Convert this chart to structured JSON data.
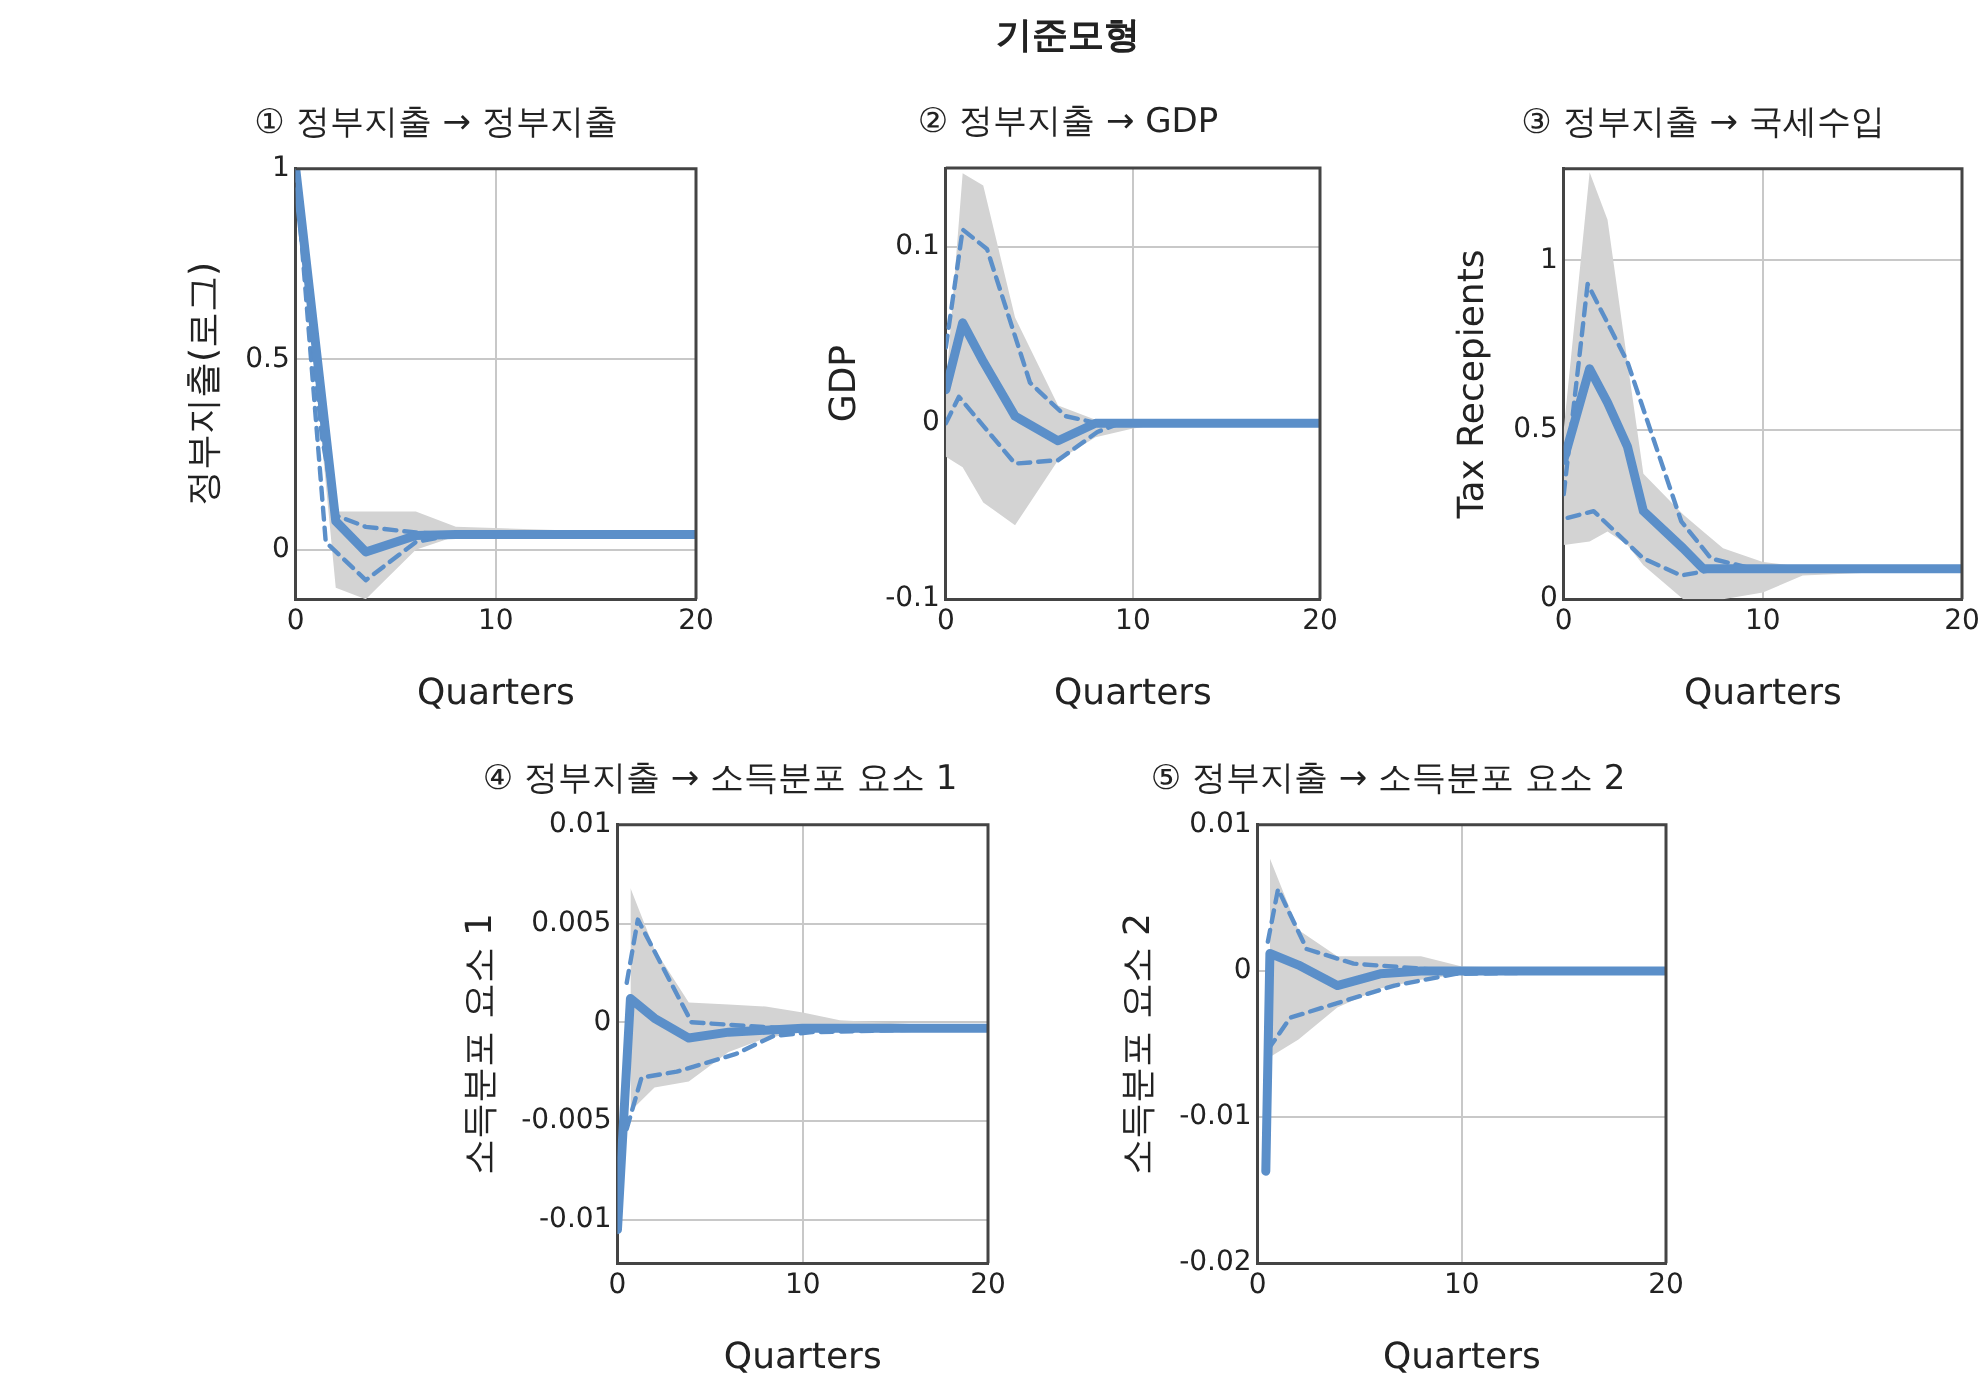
{
  "chart_data": [
    {
      "type": "line",
      "subtitle": "① 정부지출 → 정부지출",
      "xlabel": "Quarters",
      "ylabel": "정부지출(로그)",
      "xlim": [
        0,
        20
      ],
      "xticks": [
        0,
        10,
        20
      ],
      "ylim": [
        -0.13,
        1
      ],
      "yticks": [
        0,
        0.5,
        1
      ],
      "grid": true,
      "series": [
        {
          "color": "#5b8fc9",
          "line_style": "solid",
          "x": [
            0,
            2,
            3.5,
            6,
            8,
            20
          ],
          "values": [
            1,
            0.075,
            -0.006,
            0.037,
            0.04,
            0.04
          ],
          "lower": [
            1,
            -0.1,
            -0.13,
            0.0,
            0.035,
            0.04
          ],
          "upper": [
            1,
            0.1,
            0.1,
            0.1,
            0.06,
            0.04
          ]
        },
        {
          "color": "#5b8fc9",
          "line_style": "dashed",
          "x": [
            0,
            1.3,
            2,
            3.5,
            6,
            8,
            20
          ],
          "values": [
            1,
            0.3,
            0.09,
            0.06,
            0.045,
            0.04,
            0.04
          ]
        },
        {
          "color": "#5b8fc9",
          "line_style": "dashed",
          "x": [
            0,
            1.5,
            3.5,
            6,
            8,
            20
          ],
          "values": [
            1,
            0.02,
            -0.08,
            0.02,
            0.04,
            0.04
          ]
        }
      ]
    },
    {
      "type": "line",
      "title": "기준모형",
      "subtitle": "② 정부지출 → GDP",
      "xlabel": "Quarters",
      "ylabel": "GDP",
      "xlim": [
        0,
        20
      ],
      "xticks": [
        0,
        10,
        20
      ],
      "ylim": [
        -0.1,
        0.145
      ],
      "yticks": [
        -0.1,
        0,
        0.1
      ],
      "grid": true,
      "series": [
        {
          "color": "#5b8fc9",
          "line_style": "solid",
          "x": [
            0,
            0.9,
            2,
            3.7,
            6,
            8,
            10,
            12,
            20
          ],
          "values": [
            0.019,
            0.057,
            0.035,
            0.004,
            -0.01,
            0,
            0,
            0,
            0
          ],
          "lower": [
            -0.019,
            -0.025,
            -0.045,
            -0.058,
            -0.021,
            -0.008,
            -0.003,
            0,
            0
          ],
          "upper": [
            0.02,
            0.142,
            0.135,
            0.06,
            0.01,
            0.002,
            0.001,
            0,
            0
          ]
        },
        {
          "color": "#5b8fc9",
          "line_style": "dashed",
          "x": [
            0,
            0.9,
            2.2,
            4.5,
            6.4,
            8.1,
            20
          ],
          "values": [
            0.043,
            0.11,
            0.099,
            0.023,
            0.004,
            0,
            0
          ]
        },
        {
          "color": "#5b8fc9",
          "line_style": "dashed",
          "x": [
            0,
            0.7,
            3.7,
            6,
            8.1,
            9.3,
            20
          ],
          "values": [
            0,
            0.015,
            -0.023,
            -0.021,
            -0.005,
            0,
            0
          ]
        }
      ]
    },
    {
      "type": "line",
      "subtitle": "③ 정부지출 → 국세수입",
      "xlabel": "Quarters",
      "ylabel": "Tax Recepients",
      "xlim": [
        0,
        20
      ],
      "xticks": [
        0,
        10,
        20
      ],
      "ylim": [
        0,
        1.27
      ],
      "yticks": [
        0,
        0.5,
        1
      ],
      "grid": true,
      "series": [
        {
          "color": "#5b8fc9",
          "line_style": "solid",
          "x": [
            0,
            1.3,
            2.2,
            3.2,
            4,
            6,
            7,
            8,
            10,
            12,
            20
          ],
          "values": [
            0.41,
            0.68,
            0.58,
            0.45,
            0.26,
            0.15,
            0.09,
            0.09,
            0.09,
            0.09,
            0.09
          ],
          "lower": [
            0.16,
            0.17,
            0.2,
            0.16,
            0.1,
            0,
            0,
            0,
            0.02,
            0.07,
            0.09
          ],
          "upper": [
            0.5,
            1.26,
            1.12,
            0.7,
            0.37,
            0.25,
            0.2,
            0.15,
            0.11,
            0.095,
            0.09
          ]
        },
        {
          "color": "#5b8fc9",
          "line_style": "dashed",
          "x": [
            0,
            1.2,
            3.2,
            5.9,
            7.4,
            9.5,
            20
          ],
          "values": [
            0.31,
            0.93,
            0.7,
            0.23,
            0.12,
            0.09,
            0.09
          ]
        },
        {
          "color": "#5b8fc9",
          "line_style": "dashed",
          "x": [
            0.2,
            1.5,
            4,
            5.9,
            7.8,
            20
          ],
          "values": [
            0.24,
            0.26,
            0.12,
            0.07,
            0.09,
            0.09
          ]
        }
      ]
    },
    {
      "type": "line",
      "subtitle": "④ 정부지출 → 소득분포 요소 1",
      "xlabel": "Quarters",
      "ylabel": "소득분포 요소 1",
      "xlim": [
        0,
        20
      ],
      "xticks": [
        0,
        10,
        20
      ],
      "ylim": [
        -0.0122,
        0.01
      ],
      "yticks": [
        -0.01,
        -0.005,
        0,
        0.005,
        0.01
      ],
      "grid": true,
      "series": [
        {
          "color": "#5b8fc9",
          "line_style": "solid",
          "x": [
            0,
            0.7,
            2,
            3.85,
            6,
            8,
            10,
            12,
            20
          ],
          "values": [
            -0.0105,
            0.0012,
            0.0002,
            -0.0008,
            -0.0005,
            -0.0004,
            -0.0003,
            -0.0003,
            -0.0003
          ],
          "lower": [
            null,
            -0.0045,
            -0.0033,
            -0.003,
            -0.0015,
            -0.0008,
            -0.0005,
            -0.0004,
            -0.0003
          ],
          "upper": [
            null,
            0.0068,
            0.0037,
            0.001,
            0.0009,
            0.0008,
            0.0005,
            0.0001,
            -0.0003
          ]
        },
        {
          "color": "#5b8fc9",
          "line_style": "dashed",
          "x": [
            0.5,
            1.1,
            4,
            8.9,
            20
          ],
          "values": [
            0.002,
            0.0052,
            0,
            -0.0003,
            -0.0003
          ]
        },
        {
          "color": "#5b8fc9",
          "line_style": "dashed",
          "x": [
            0.5,
            1.3,
            3.2,
            6.4,
            8.4,
            10.5,
            20
          ],
          "values": [
            -0.0054,
            -0.0028,
            -0.0025,
            -0.0016,
            -0.0007,
            -0.0005,
            -0.0003
          ]
        }
      ]
    },
    {
      "type": "line",
      "subtitle": "⑤ 정부지출 → 소득분포 요소 2",
      "xlabel": "Quarters",
      "ylabel": "소득분포 요소 2",
      "xlim": [
        0,
        20
      ],
      "xticks": [
        0,
        10,
        20
      ],
      "ylim": [
        -0.02,
        0.01
      ],
      "yticks": [
        -0.02,
        -0.01,
        0,
        0.01
      ],
      "grid": true,
      "series": [
        {
          "color": "#5b8fc9",
          "line_style": "solid",
          "x": [
            0.4,
            0.6,
            2,
            3.9,
            6,
            8,
            10,
            20
          ],
          "values": [
            -0.0137,
            0.0012,
            0.0004,
            -0.001,
            -0.0002,
            0,
            0,
            0
          ],
          "lower": [
            null,
            -0.0059,
            -0.0047,
            -0.0025,
            -0.0012,
            -0.0006,
            -0.0002,
            0
          ],
          "upper": [
            null,
            0.0077,
            0.0028,
            0.001,
            0.001,
            0.001,
            0.0003,
            0
          ]
        },
        {
          "color": "#5b8fc9",
          "line_style": "dashed",
          "x": [
            0.5,
            1,
            2.4,
            4.7,
            9.5,
            20
          ],
          "values": [
            0.002,
            0.0056,
            0.0015,
            0.0005,
            0,
            0
          ]
        },
        {
          "color": "#5b8fc9",
          "line_style": "dashed",
          "x": [
            0.5,
            1.6,
            3.9,
            6.7,
            9.7,
            20
          ],
          "values": [
            -0.0054,
            -0.0032,
            -0.0022,
            -0.001,
            -0.0002,
            0
          ]
        }
      ]
    }
  ]
}
